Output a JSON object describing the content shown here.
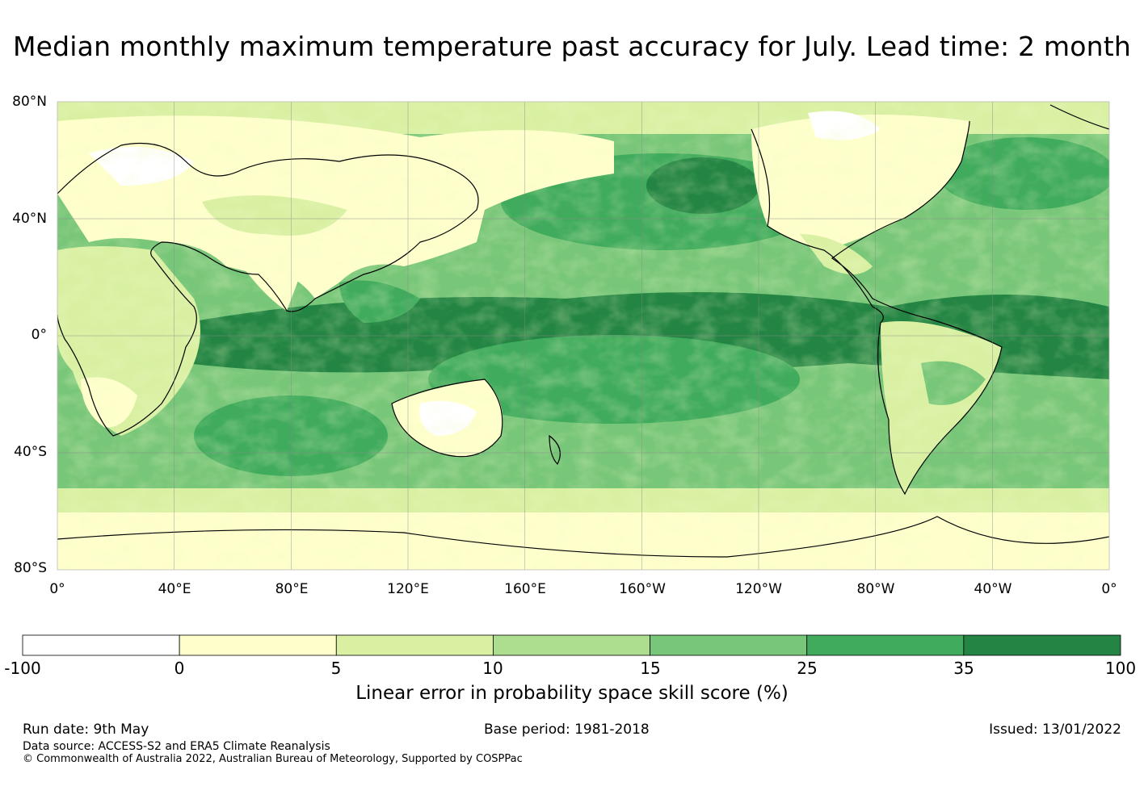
{
  "title": "Median monthly maximum temperature past accuracy for July. Lead time: 2 month",
  "map": {
    "projection": "equirectangular, centered 180°",
    "lat_labels": [
      "80°N",
      "40°N",
      "0°",
      "40°S",
      "80°S"
    ],
    "lon_labels": [
      "0°",
      "40°E",
      "80°E",
      "120°E",
      "160°E",
      "160°W",
      "120°W",
      "80°W",
      "40°W",
      "0°"
    ],
    "grid": true,
    "coastlines": true
  },
  "colorbar": {
    "label": "Linear error in probability space skill score (%)",
    "ticks": [
      "-100",
      "0",
      "5",
      "10",
      "15",
      "25",
      "35",
      "100"
    ],
    "bins": [
      {
        "from": -100,
        "to": 0,
        "color": "#ffffff"
      },
      {
        "from": 0,
        "to": 5,
        "color": "#ffffcc"
      },
      {
        "from": 5,
        "to": 10,
        "color": "#d9f0a3"
      },
      {
        "from": 10,
        "to": 15,
        "color": "#addd8e"
      },
      {
        "from": 15,
        "to": 25,
        "color": "#78c679"
      },
      {
        "from": 25,
        "to": 35,
        "color": "#41ab5d"
      },
      {
        "from": 35,
        "to": 100,
        "color": "#238443"
      }
    ]
  },
  "footer": {
    "run_date": "Run date: 9th May",
    "base_period": "Base period: 1981-2018",
    "issued": "Issued: 13/01/2022",
    "data_source": "Data source: ACCESS-S2 and ERA5 Climate Reanalysis",
    "copyright": "© Commonwealth of Australia 2022, Australian Bureau of Meteorology, Supported by COSPPac"
  },
  "colors": {
    "land_outline": "#000000",
    "grid": "#888888",
    "equatorial_band": "#238443"
  }
}
